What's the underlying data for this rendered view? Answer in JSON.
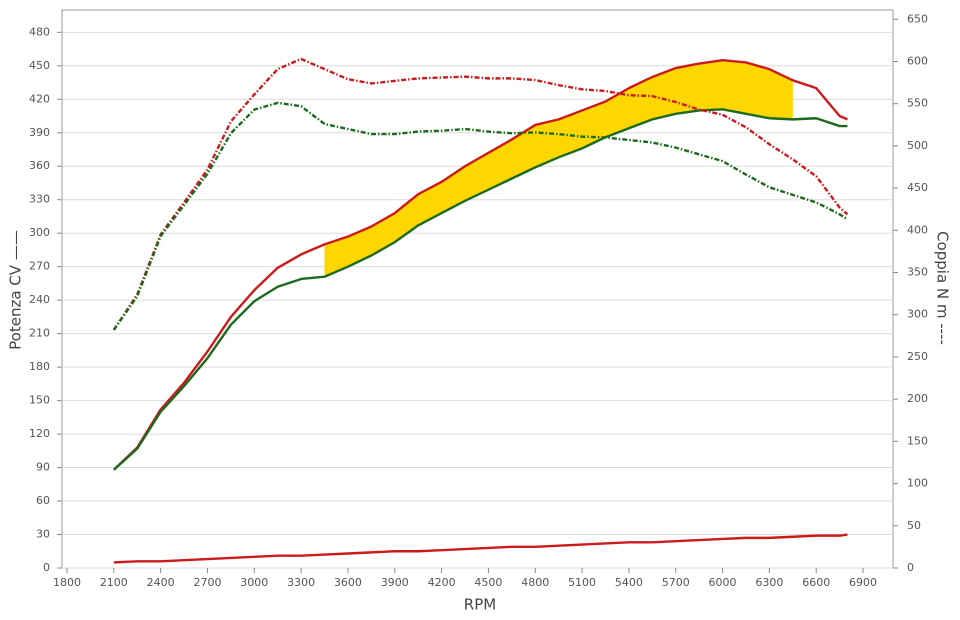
{
  "chart_data": {
    "type": "line",
    "xlabel": "RPM",
    "ylabel": "Potenza CV ——",
    "y2label": "Coppia N m ----",
    "x": [
      2100,
      2250,
      2400,
      2550,
      2700,
      2850,
      3000,
      3150,
      3300,
      3450,
      3600,
      3750,
      3900,
      4050,
      4200,
      4350,
      4500,
      4650,
      4800,
      4950,
      5100,
      5250,
      5400,
      5550,
      5700,
      5850,
      6000,
      6150,
      6300,
      6450,
      6600,
      6750,
      6800
    ],
    "series": [
      {
        "color": "#cc1b1b",
        "dash": "solid",
        "axis": "y",
        "values": [
          88,
          108,
          142,
          166,
          194,
          225,
          249,
          269,
          281,
          290,
          297,
          306,
          318,
          335,
          346,
          360,
          372,
          384,
          397,
          402,
          410,
          418,
          430,
          440,
          448,
          452,
          455,
          453,
          447,
          437,
          430,
          405,
          402
        ]
      },
      {
        "color": "#1c6a1c",
        "dash": "solid",
        "axis": "y",
        "values": [
          88,
          107,
          140,
          163,
          188,
          218,
          239,
          252,
          259,
          261,
          270,
          280,
          292,
          307,
          318,
          329,
          339,
          349,
          359,
          368,
          376,
          386,
          394,
          402,
          407,
          410,
          411,
          407,
          403,
          402,
          403,
          396,
          396
        ]
      },
      {
        "color": "#cc1b1b",
        "dash": "dotted",
        "axis": "y2",
        "values": [
          282,
          324,
          395,
          433,
          472,
          529,
          561,
          591,
          603,
          591,
          579,
          574,
          577,
          580,
          581,
          582,
          580,
          580,
          578,
          572,
          567,
          565,
          560,
          559,
          552,
          543,
          537,
          522,
          502,
          484,
          464,
          427,
          419
        ]
      },
      {
        "color": "#1c6a1c",
        "dash": "dotted",
        "axis": "y2",
        "values": [
          282,
          322,
          393,
          430,
          467,
          515,
          543,
          551,
          547,
          526,
          520,
          514,
          514,
          517,
          518,
          520,
          517,
          515,
          516,
          514,
          511,
          510,
          507,
          504,
          498,
          490,
          482,
          466,
          451,
          442,
          433,
          419,
          413
        ]
      },
      {
        "color": "#cc1b1b",
        "dash": "solid",
        "axis": "y",
        "values": [
          5,
          6,
          6,
          7,
          8,
          9,
          10,
          11,
          11,
          12,
          13,
          14,
          15,
          15,
          16,
          17,
          18,
          19,
          19,
          20,
          21,
          22,
          23,
          23,
          24,
          25,
          26,
          27,
          27,
          28,
          29,
          29,
          30
        ]
      }
    ],
    "highlight": {
      "x_from": 3450,
      "x_to": 6450,
      "color": "#ffd700"
    },
    "xlim": [
      1768,
      7092
    ],
    "xticks": [
      1800,
      2100,
      2400,
      2700,
      3000,
      3300,
      3600,
      3900,
      4200,
      4500,
      4800,
      5100,
      5400,
      5700,
      6000,
      6300,
      6600,
      6900
    ],
    "ylim": [
      0,
      500
    ],
    "yticks": [
      0,
      30,
      60,
      90,
      120,
      150,
      180,
      210,
      240,
      270,
      300,
      330,
      360,
      390,
      420,
      450,
      480
    ],
    "y2lim": [
      0,
      661
    ],
    "y2ticks": [
      0,
      50,
      100,
      150,
      200,
      250,
      300,
      350,
      400,
      450,
      500,
      550,
      600,
      650
    ],
    "grid": true
  }
}
